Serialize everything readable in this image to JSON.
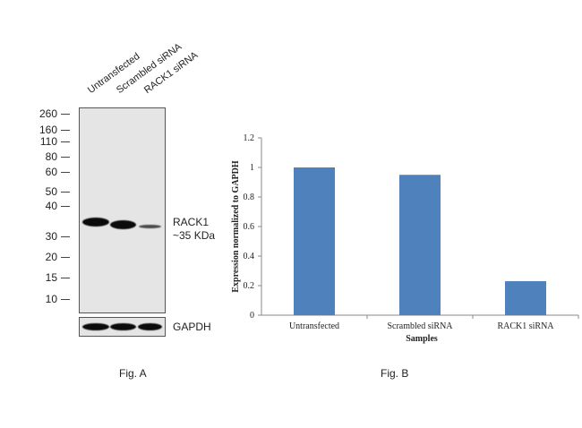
{
  "fig_a": {
    "lane_labels": [
      "Untransfected",
      "Scrambled siRNA",
      "RACK1  siRNA"
    ],
    "mw_markers": [
      "260",
      "160",
      "110",
      "80",
      "60",
      "50",
      "40",
      "30",
      "20",
      "15",
      "10"
    ],
    "band_label_line1": "RACK1",
    "band_label_line2": "~35 KDa",
    "loading_control_label": "GAPDH",
    "caption": "Fig. A"
  },
  "fig_b": {
    "caption": "Fig. B"
  },
  "chart_data": {
    "type": "bar",
    "categories": [
      "Untransfected",
      "Scrambled siRNA",
      "RACK1 siRNA"
    ],
    "values": [
      1.0,
      0.95,
      0.23
    ],
    "xlabel": "Samples",
    "ylabel": "Expression normalized to GAPDH",
    "ylim": [
      0,
      1.2
    ],
    "yticks": [
      "0",
      "0.2",
      "0.4",
      "0.6",
      "0.8",
      "1",
      "1.2"
    ],
    "bar_color": "#4f81bd",
    "grid": false,
    "legend": "none"
  }
}
